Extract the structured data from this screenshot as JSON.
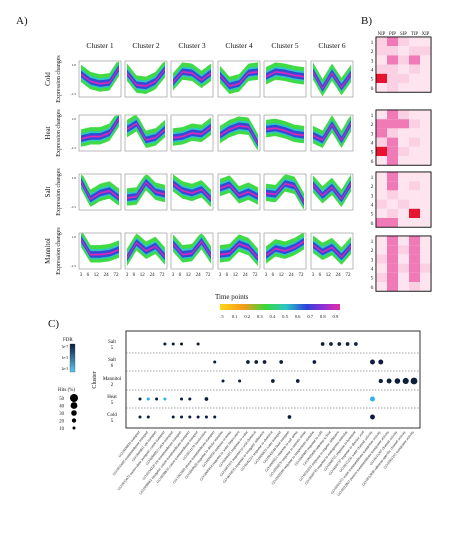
{
  "panels": {
    "A": "A)",
    "B": "B)",
    "C": "C)"
  },
  "clusters": [
    "Cluster 1",
    "Cluster 2",
    "Cluster 3",
    "Cluster 4",
    "Cluster 5",
    "Cluster 6"
  ],
  "treatments": [
    "Cold",
    "Heat",
    "Salt",
    "Mannitol"
  ],
  "row_ylabel": "Expression changes",
  "time_points": [
    "3",
    "6",
    "12",
    "24",
    "72"
  ],
  "time_points_label": "Time points",
  "membership_ticks": [
    ".5",
    "0.1",
    "0.2",
    "0.3",
    "0.4",
    "0.5",
    "0.6",
    "0.7",
    "0.8",
    "0.9"
  ],
  "y_ticks": [
    "1.0",
    "-1.5"
  ],
  "colors": {
    "low": "#ffd51a",
    "mid1": "#36d93a",
    "mid2": "#2cc5c8",
    "mid3": "#2f43d6",
    "high": "#8e2fd6",
    "top": "#e52ca8",
    "heat_hi": "#e8132f",
    "heat_mid": "#f07ab6",
    "heat_lo": "#fbd0e2",
    "dot": "#0d1e3d",
    "dot_light": "#2ab3e8"
  },
  "tissues": [
    "NIP",
    "PIP",
    "SIP",
    "TIP",
    "XIP"
  ],
  "heatmap_rows": [
    "1",
    "2",
    "3",
    "4",
    "5",
    "6"
  ],
  "chart_data": [
    {
      "type": "line",
      "panel": "A",
      "note": "fuzzy c-means cluster trajectories per treatment",
      "x": [
        "3",
        "6",
        "12",
        "24",
        "72"
      ],
      "xlabel": "Time points",
      "ylabel": "Expression changes",
      "legend_title": "membership",
      "series": [
        {
          "name": "Cold",
          "clusters": [
            [
              0.4,
              -0.2,
              -0.4,
              -0.3,
              0.9
            ],
            [
              0.5,
              -0.5,
              -0.6,
              -0.2,
              0.8
            ],
            [
              -0.3,
              0.6,
              0.5,
              -0.1,
              0.5
            ],
            [
              0.3,
              -0.6,
              -0.4,
              0.5,
              0.6
            ],
            [
              0.2,
              0.6,
              0.5,
              0.3,
              0.2
            ],
            [
              0.6,
              -0.8,
              0.5,
              -0.7,
              0.4
            ]
          ]
        },
        {
          "name": "Heat",
          "clusters": [
            [
              -0.5,
              -0.3,
              -0.3,
              0.0,
              1.2
            ],
            [
              0.3,
              0.8,
              -0.6,
              -0.4,
              0.3
            ],
            [
              -0.4,
              -0.3,
              0.0,
              -0.1,
              0.5
            ],
            [
              -0.2,
              0.3,
              0.6,
              0.5,
              -0.9
            ],
            [
              0.3,
              0.4,
              0.2,
              -0.1,
              -0.2
            ],
            [
              -0.2,
              -0.6,
              0.7,
              -0.6,
              0.8
            ]
          ]
        },
        {
          "name": "Salt",
          "clusters": [
            [
              0.9,
              -0.6,
              -0.1,
              0.1,
              -0.5
            ],
            [
              -0.5,
              -0.4,
              0.8,
              0.0,
              -0.2
            ],
            [
              0.7,
              0.1,
              -0.1,
              0.2,
              -0.6
            ],
            [
              0.3,
              0.6,
              -0.3,
              0.0,
              -0.4
            ],
            [
              -0.1,
              -0.2,
              0.7,
              0.5,
              -0.9
            ],
            [
              0.6,
              -0.3,
              0.4,
              -0.6,
              0.7
            ]
          ]
        },
        {
          "name": "Mannitol",
          "clusters": [
            [
              1.0,
              -0.3,
              -0.3,
              -0.2,
              0.1
            ],
            [
              -0.6,
              0.7,
              0.0,
              0.4,
              -0.5
            ],
            [
              0.6,
              -0.3,
              -0.2,
              0.8,
              -0.4
            ],
            [
              -0.3,
              -0.2,
              0.6,
              0.3,
              -0.6
            ],
            [
              -0.4,
              0.2,
              0.0,
              0.3,
              0.8
            ],
            [
              0.5,
              -0.1,
              0.3,
              -0.5,
              0.4
            ]
          ]
        }
      ]
    },
    {
      "type": "heatmap",
      "panel": "B",
      "columns": [
        "NIP",
        "PIP",
        "SIP",
        "TIP",
        "XIP"
      ],
      "row_labels": [
        "1",
        "2",
        "3",
        "4",
        "5",
        "6"
      ],
      "blocks": [
        {
          "name": "Cold",
          "values": [
            [
              1,
              2,
              1,
              0,
              0
            ],
            [
              1,
              1,
              0,
              1,
              1
            ],
            [
              0,
              2,
              1,
              2,
              0
            ],
            [
              1,
              1,
              0,
              1,
              0
            ],
            [
              3,
              1,
              1,
              0,
              0
            ],
            [
              0,
              1,
              0,
              0,
              0
            ]
          ]
        },
        {
          "name": "Heat",
          "values": [
            [
              0,
              2,
              1,
              0,
              0
            ],
            [
              2,
              2,
              2,
              1,
              0
            ],
            [
              2,
              1,
              0,
              0,
              0
            ],
            [
              1,
              2,
              0,
              1,
              0
            ],
            [
              3,
              2,
              1,
              0,
              0
            ],
            [
              0,
              2,
              0,
              0,
              0
            ]
          ]
        },
        {
          "name": "Salt",
          "values": [
            [
              0,
              2,
              0,
              0,
              0
            ],
            [
              0,
              2,
              0,
              1,
              0
            ],
            [
              0,
              1,
              0,
              0,
              0
            ],
            [
              1,
              0,
              1,
              0,
              0
            ],
            [
              0,
              1,
              0,
              3,
              0
            ],
            [
              2,
              2,
              0,
              0,
              0
            ]
          ]
        },
        {
          "name": "Mannitol",
          "values": [
            [
              0,
              2,
              0,
              2,
              0
            ],
            [
              0,
              2,
              1,
              2,
              0
            ],
            [
              1,
              2,
              0,
              2,
              0
            ],
            [
              0,
              2,
              1,
              2,
              1
            ],
            [
              1,
              2,
              0,
              2,
              0
            ],
            [
              0,
              2,
              0,
              1,
              0
            ]
          ]
        }
      ]
    },
    {
      "type": "scatter",
      "panel": "C",
      "ylabel": "Cluster",
      "color_legend_title": "FDR",
      "color_legend_ticks": [
        "5e-7",
        "1e-3",
        "2e-3"
      ],
      "size_legend_title": "Hits (%)",
      "size_legend_values": [
        50,
        40,
        30,
        20,
        10
      ],
      "rows": [
        {
          "label": "Salt",
          "sub": "5"
        },
        {
          "label": "Salt",
          "sub": "6"
        },
        {
          "label": "Mannitol",
          "sub": "2"
        },
        {
          "label": "Heat",
          "sub": "5"
        },
        {
          "label": "Cold",
          "sub": "5"
        }
      ],
      "points": [
        {
          "row": 0,
          "col": 3,
          "size": 10,
          "fdr": "dark"
        },
        {
          "row": 0,
          "col": 4,
          "size": 10,
          "fdr": "dark"
        },
        {
          "row": 0,
          "col": 5,
          "size": 10,
          "fdr": "dark"
        },
        {
          "row": 0,
          "col": 7,
          "size": 10,
          "fdr": "dark"
        },
        {
          "row": 0,
          "col": 22,
          "size": 15,
          "fdr": "dark"
        },
        {
          "row": 0,
          "col": 23,
          "size": 15,
          "fdr": "dark"
        },
        {
          "row": 0,
          "col": 24,
          "size": 15,
          "fdr": "dark"
        },
        {
          "row": 0,
          "col": 25,
          "size": 15,
          "fdr": "dark"
        },
        {
          "row": 0,
          "col": 26,
          "size": 15,
          "fdr": "dark"
        },
        {
          "row": 1,
          "col": 9,
          "size": 10,
          "fdr": "dark"
        },
        {
          "row": 1,
          "col": 13,
          "size": 15,
          "fdr": "dark"
        },
        {
          "row": 1,
          "col": 14,
          "size": 15,
          "fdr": "dark"
        },
        {
          "row": 1,
          "col": 15,
          "size": 15,
          "fdr": "dark"
        },
        {
          "row": 1,
          "col": 17,
          "size": 15,
          "fdr": "dark"
        },
        {
          "row": 1,
          "col": 21,
          "size": 15,
          "fdr": "dark"
        },
        {
          "row": 1,
          "col": 28,
          "size": 25,
          "fdr": "dark"
        },
        {
          "row": 1,
          "col": 29,
          "size": 25,
          "fdr": "dark"
        },
        {
          "row": 2,
          "col": 10,
          "size": 10,
          "fdr": "dark"
        },
        {
          "row": 2,
          "col": 12,
          "size": 10,
          "fdr": "dark"
        },
        {
          "row": 2,
          "col": 16,
          "size": 15,
          "fdr": "dark"
        },
        {
          "row": 2,
          "col": 19,
          "size": 15,
          "fdr": "dark"
        },
        {
          "row": 2,
          "col": 29,
          "size": 20,
          "fdr": "dark"
        },
        {
          "row": 2,
          "col": 30,
          "size": 25,
          "fdr": "dark"
        },
        {
          "row": 2,
          "col": 31,
          "size": 30,
          "fdr": "dark"
        },
        {
          "row": 2,
          "col": 32,
          "size": 35,
          "fdr": "dark"
        },
        {
          "row": 2,
          "col": 33,
          "size": 40,
          "fdr": "dark"
        },
        {
          "row": 3,
          "col": 0,
          "size": 10,
          "fdr": "dark"
        },
        {
          "row": 3,
          "col": 1,
          "size": 10,
          "fdr": "light"
        },
        {
          "row": 3,
          "col": 2,
          "size": 10,
          "fdr": "dark"
        },
        {
          "row": 3,
          "col": 3,
          "size": 10,
          "fdr": "light"
        },
        {
          "row": 3,
          "col": 5,
          "size": 10,
          "fdr": "dark"
        },
        {
          "row": 3,
          "col": 6,
          "size": 10,
          "fdr": "dark"
        },
        {
          "row": 3,
          "col": 8,
          "size": 15,
          "fdr": "dark"
        },
        {
          "row": 3,
          "col": 28,
          "size": 25,
          "fdr": "light"
        },
        {
          "row": 4,
          "col": 0,
          "size": 10,
          "fdr": "dark"
        },
        {
          "row": 4,
          "col": 1,
          "size": 10,
          "fdr": "dark"
        },
        {
          "row": 4,
          "col": 4,
          "size": 10,
          "fdr": "dark"
        },
        {
          "row": 4,
          "col": 5,
          "size": 10,
          "fdr": "dark"
        },
        {
          "row": 4,
          "col": 6,
          "size": 10,
          "fdr": "dark"
        },
        {
          "row": 4,
          "col": 7,
          "size": 10,
          "fdr": "dark"
        },
        {
          "row": 4,
          "col": 8,
          "size": 10,
          "fdr": "dark"
        },
        {
          "row": 4,
          "col": 9,
          "size": 10,
          "fdr": "dark"
        },
        {
          "row": 4,
          "col": 18,
          "size": 15,
          "fdr": "dark"
        },
        {
          "row": 4,
          "col": 28,
          "size": 25,
          "fdr": "dark"
        }
      ],
      "go_terms": [
        "GO:0006810 transport",
        "GO:0055085 transmembrane transport",
        "GO:0006811 ion transport",
        "GO:0015672 monovalent inorganic cation transport",
        "GO:0006812 cation transport",
        "GO:0034220 ion transmembrane transport",
        "GO:0098662 inorganic cation transmembrane transport",
        "GO:0098655 cation transmembrane transport",
        "GO:0051179 localization",
        "GO:1902600 proton transmembrane transport",
        "GO:0009628 response to abiotic stimulus",
        "GO:0006950 response to stress",
        "GO:0009414 response to water deprivation",
        "GO:0009415 response to water",
        "GO:0001101 response to acid chemical",
        "GO:0010035 response to inorganic substance",
        "GO:0042221 response to chemical",
        "GO:0006833 water transport",
        "GO:0042044 fluid transport",
        "GO:0009651 response to salt stress",
        "GO:0006970 response to osmotic stress",
        "GO:0009266 response to temperature stimulus",
        "GO:0009409 response to cold",
        "GO:0009408 response to heat",
        "GO:0010033 response to organic substance",
        "GO:0009719 response to endogenous stimulus",
        "GO:0009725 response to hormone",
        "GO:0009737 response to abscisic acid",
        "GO:0015250 water channel activity",
        "GO:0005372 water transmembrane transporter activity",
        "GO:0022803 passive transmembrane transporter activity",
        "GO:0015267 channel activity",
        "GO:0022838 substrate-specific channel activity",
        "GO:0005215 transporter activity"
      ]
    }
  ]
}
